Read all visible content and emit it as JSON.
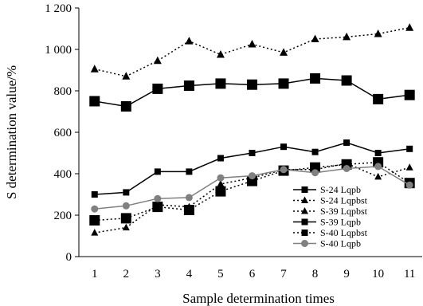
{
  "chart_data": {
    "type": "line",
    "title": "",
    "xlabel": "Sample determination times",
    "ylabel": "S determination value/%",
    "x": [
      1,
      2,
      3,
      4,
      5,
      6,
      7,
      8,
      9,
      10,
      11
    ],
    "ylim": [
      0,
      1200
    ],
    "y_ticks": [
      0,
      200,
      400,
      600,
      800,
      1000,
      1200
    ],
    "y_tick_labels": [
      "0",
      "200",
      "400",
      "600",
      "800",
      "1 000",
      "1 200"
    ],
    "x_tick_labels": [
      "1",
      "2",
      "3",
      "4",
      "5",
      "6",
      "7",
      "8",
      "9",
      "10",
      "11"
    ],
    "grid": false,
    "legend_position": "lower-right",
    "series": [
      {
        "name": "S-24 Lqpb",
        "color": "#000000",
        "line": "solid",
        "marker": "square-small",
        "values": [
          300,
          310,
          410,
          410,
          475,
          500,
          530,
          505,
          550,
          500,
          520
        ]
      },
      {
        "name": "S-24 Lqpbst",
        "color": "#000000",
        "line": "dotted",
        "marker": "triangle-small",
        "values": [
          115,
          140,
          250,
          240,
          350,
          380,
          420,
          420,
          450,
          385,
          430
        ]
      },
      {
        "name": "S-39 Lqpbst",
        "color": "#000000",
        "line": "dotted",
        "marker": "triangle",
        "values": [
          905,
          870,
          945,
          1040,
          975,
          1025,
          985,
          1050,
          1060,
          1075,
          1105
        ]
      },
      {
        "name": "S-39 Lqpb",
        "color": "#000000",
        "line": "solid",
        "marker": "square",
        "values": [
          750,
          725,
          810,
          825,
          835,
          830,
          835,
          860,
          850,
          760,
          780
        ]
      },
      {
        "name": "S-40 Lqpbst",
        "color": "#000000",
        "line": "dotted",
        "marker": "square",
        "values": [
          175,
          185,
          240,
          225,
          315,
          365,
          415,
          430,
          445,
          455,
          355
        ]
      },
      {
        "name": "S-40 Lqpb",
        "color": "#808080",
        "line": "solid",
        "marker": "circle",
        "values": [
          230,
          245,
          280,
          285,
          380,
          390,
          420,
          405,
          425,
          435,
          345
        ]
      }
    ]
  }
}
